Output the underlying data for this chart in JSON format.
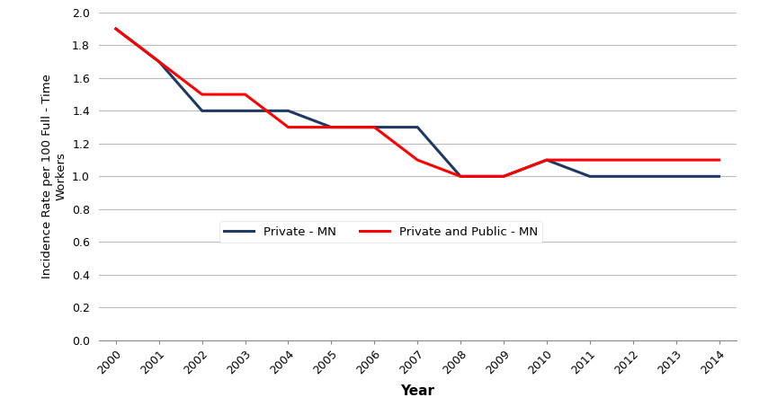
{
  "years": [
    2000,
    2001,
    2002,
    2003,
    2004,
    2005,
    2006,
    2007,
    2008,
    2009,
    2010,
    2011,
    2012,
    2013,
    2014
  ],
  "private_mn": [
    1.9,
    1.7,
    1.4,
    1.4,
    1.4,
    1.3,
    1.3,
    1.3,
    1.0,
    1.0,
    1.1,
    1.0,
    1.0,
    1.0,
    1.0
  ],
  "private_public_mn": [
    1.9,
    1.7,
    1.5,
    1.5,
    1.3,
    1.3,
    1.3,
    1.1,
    1.0,
    1.0,
    1.1,
    1.1,
    1.1,
    1.1,
    1.1
  ],
  "private_color": "#1F3864",
  "private_public_color": "#FF0000",
  "ylabel": "Incidence Rate per 100 Full - Time\nWorkers",
  "xlabel": "Year",
  "ylim": [
    0.0,
    2.0
  ],
  "yticks": [
    0.0,
    0.2,
    0.4,
    0.6,
    0.8,
    1.0,
    1.2,
    1.4,
    1.6,
    1.8,
    2.0
  ],
  "legend_private": "Private - MN",
  "legend_private_public": "Private and Public - MN",
  "background_color": "#FFFFFF",
  "line_width": 2.2,
  "grid_color": "#BBBBBB"
}
